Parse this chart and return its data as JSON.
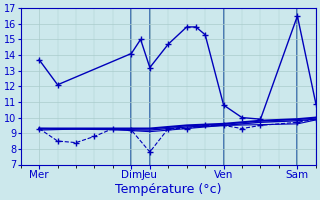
{
  "title": "Température (°c)",
  "background_color": "#cce8ec",
  "grid_color": "#aacccc",
  "line_color": "#0000bb",
  "ylim": [
    7,
    17
  ],
  "yticks": [
    7,
    8,
    9,
    10,
    11,
    12,
    13,
    14,
    15,
    16,
    17
  ],
  "xlim": [
    0,
    16
  ],
  "xtick_labels": [
    "Mer",
    "Dim",
    "Jeu",
    "Ven",
    "Sam"
  ],
  "xtick_positions": [
    1,
    6,
    7,
    11,
    15
  ],
  "vlines": [
    6,
    7,
    11,
    15
  ],
  "lines": [
    {
      "x": [
        1,
        2,
        6,
        6.5,
        7,
        8,
        9,
        9.5,
        10,
        11,
        12,
        13,
        15,
        16
      ],
      "y": [
        13.7,
        12.1,
        14.1,
        15.0,
        13.2,
        14.7,
        15.8,
        15.8,
        15.3,
        10.8,
        10.0,
        9.9,
        16.5,
        10.9
      ],
      "marker": "+",
      "lw": 1.0,
      "ls": "-"
    },
    {
      "x": [
        1,
        2,
        3,
        4,
        5,
        6,
        7,
        8,
        9,
        10,
        11,
        12,
        13,
        15,
        16
      ],
      "y": [
        9.3,
        8.5,
        8.4,
        8.8,
        9.3,
        9.2,
        7.8,
        9.3,
        9.3,
        9.5,
        9.5,
        9.3,
        9.5,
        9.7,
        9.9
      ],
      "marker": "+",
      "lw": 0.8,
      "ls": "--"
    },
    {
      "x": [
        1,
        7,
        9,
        11,
        13,
        15,
        16
      ],
      "y": [
        9.3,
        9.3,
        9.5,
        9.6,
        9.8,
        9.9,
        10.0
      ],
      "marker": null,
      "lw": 1.5,
      "ls": "-"
    },
    {
      "x": [
        1,
        7,
        9,
        11,
        13,
        15,
        16
      ],
      "y": [
        9.3,
        9.2,
        9.4,
        9.5,
        9.7,
        9.8,
        9.9
      ],
      "marker": null,
      "lw": 1.0,
      "ls": "-"
    },
    {
      "x": [
        1,
        4,
        7,
        9,
        11,
        15,
        16
      ],
      "y": [
        9.2,
        9.3,
        9.1,
        9.3,
        9.5,
        9.6,
        9.85
      ],
      "marker": null,
      "lw": 0.8,
      "ls": "-"
    }
  ]
}
